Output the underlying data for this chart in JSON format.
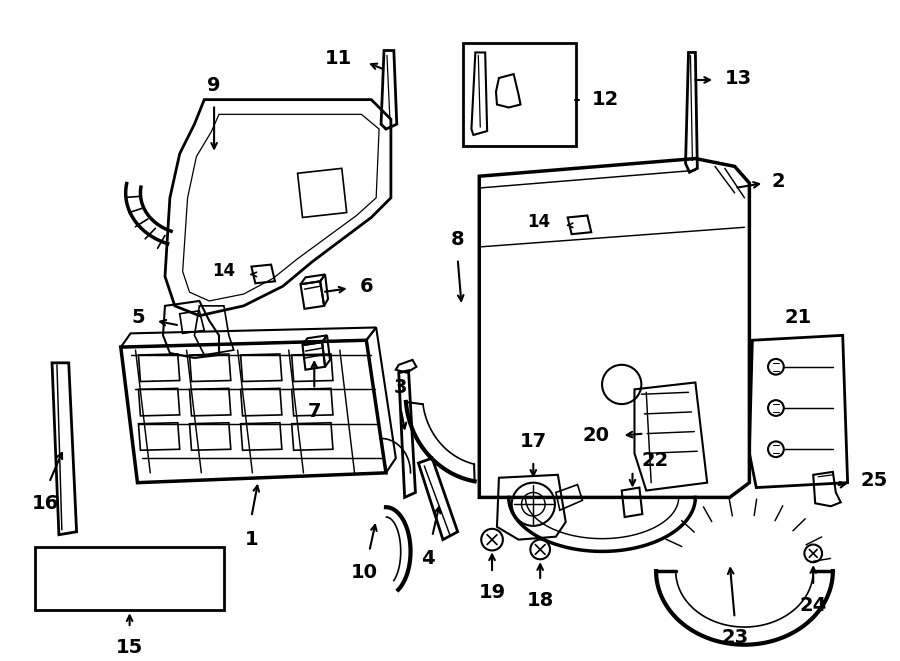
{
  "background_color": "#ffffff",
  "line_color": "#000000",
  "font_size": 12,
  "line_width": 1.5
}
